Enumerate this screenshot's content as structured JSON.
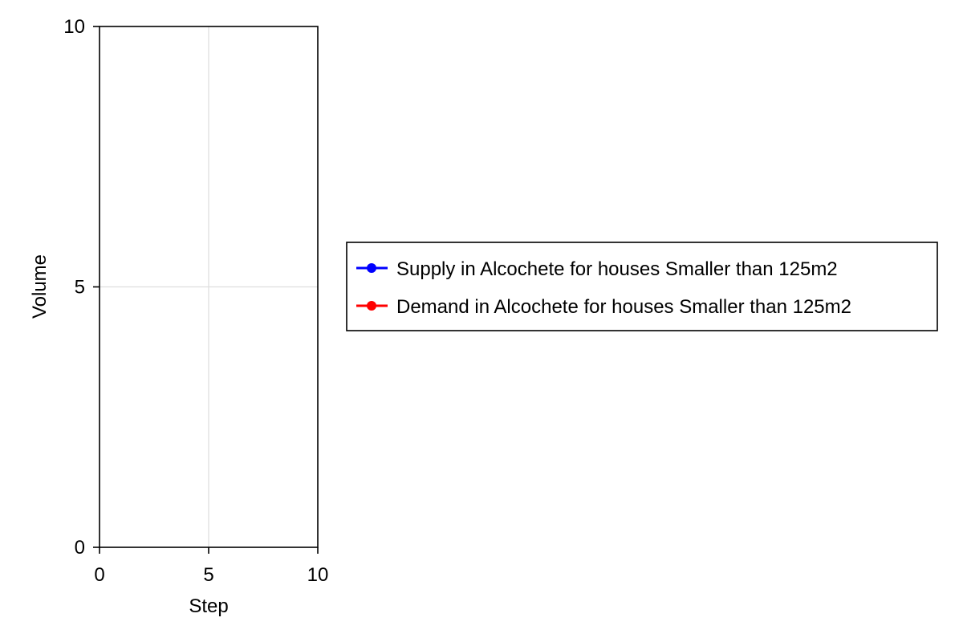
{
  "chart_data": {
    "type": "line",
    "title": "",
    "xlabel": "Step",
    "ylabel": "Volume",
    "xlim": [
      0,
      10
    ],
    "ylim": [
      0,
      10
    ],
    "xticks": [
      0,
      5,
      10
    ],
    "yticks": [
      0,
      5,
      10
    ],
    "xtick_labels": [
      "0",
      "5",
      "10"
    ],
    "ytick_labels": [
      "0",
      "5",
      "10"
    ],
    "grid": true,
    "legend_position": "right",
    "series": [
      {
        "name": "Supply in Alcochete for houses Smaller than 125m2",
        "color": "#0000ff",
        "marker": "circle",
        "x": [],
        "y": []
      },
      {
        "name": "Demand in Alcochete for houses Smaller than 125m2",
        "color": "#ff0000",
        "marker": "circle",
        "x": [],
        "y": []
      }
    ]
  }
}
